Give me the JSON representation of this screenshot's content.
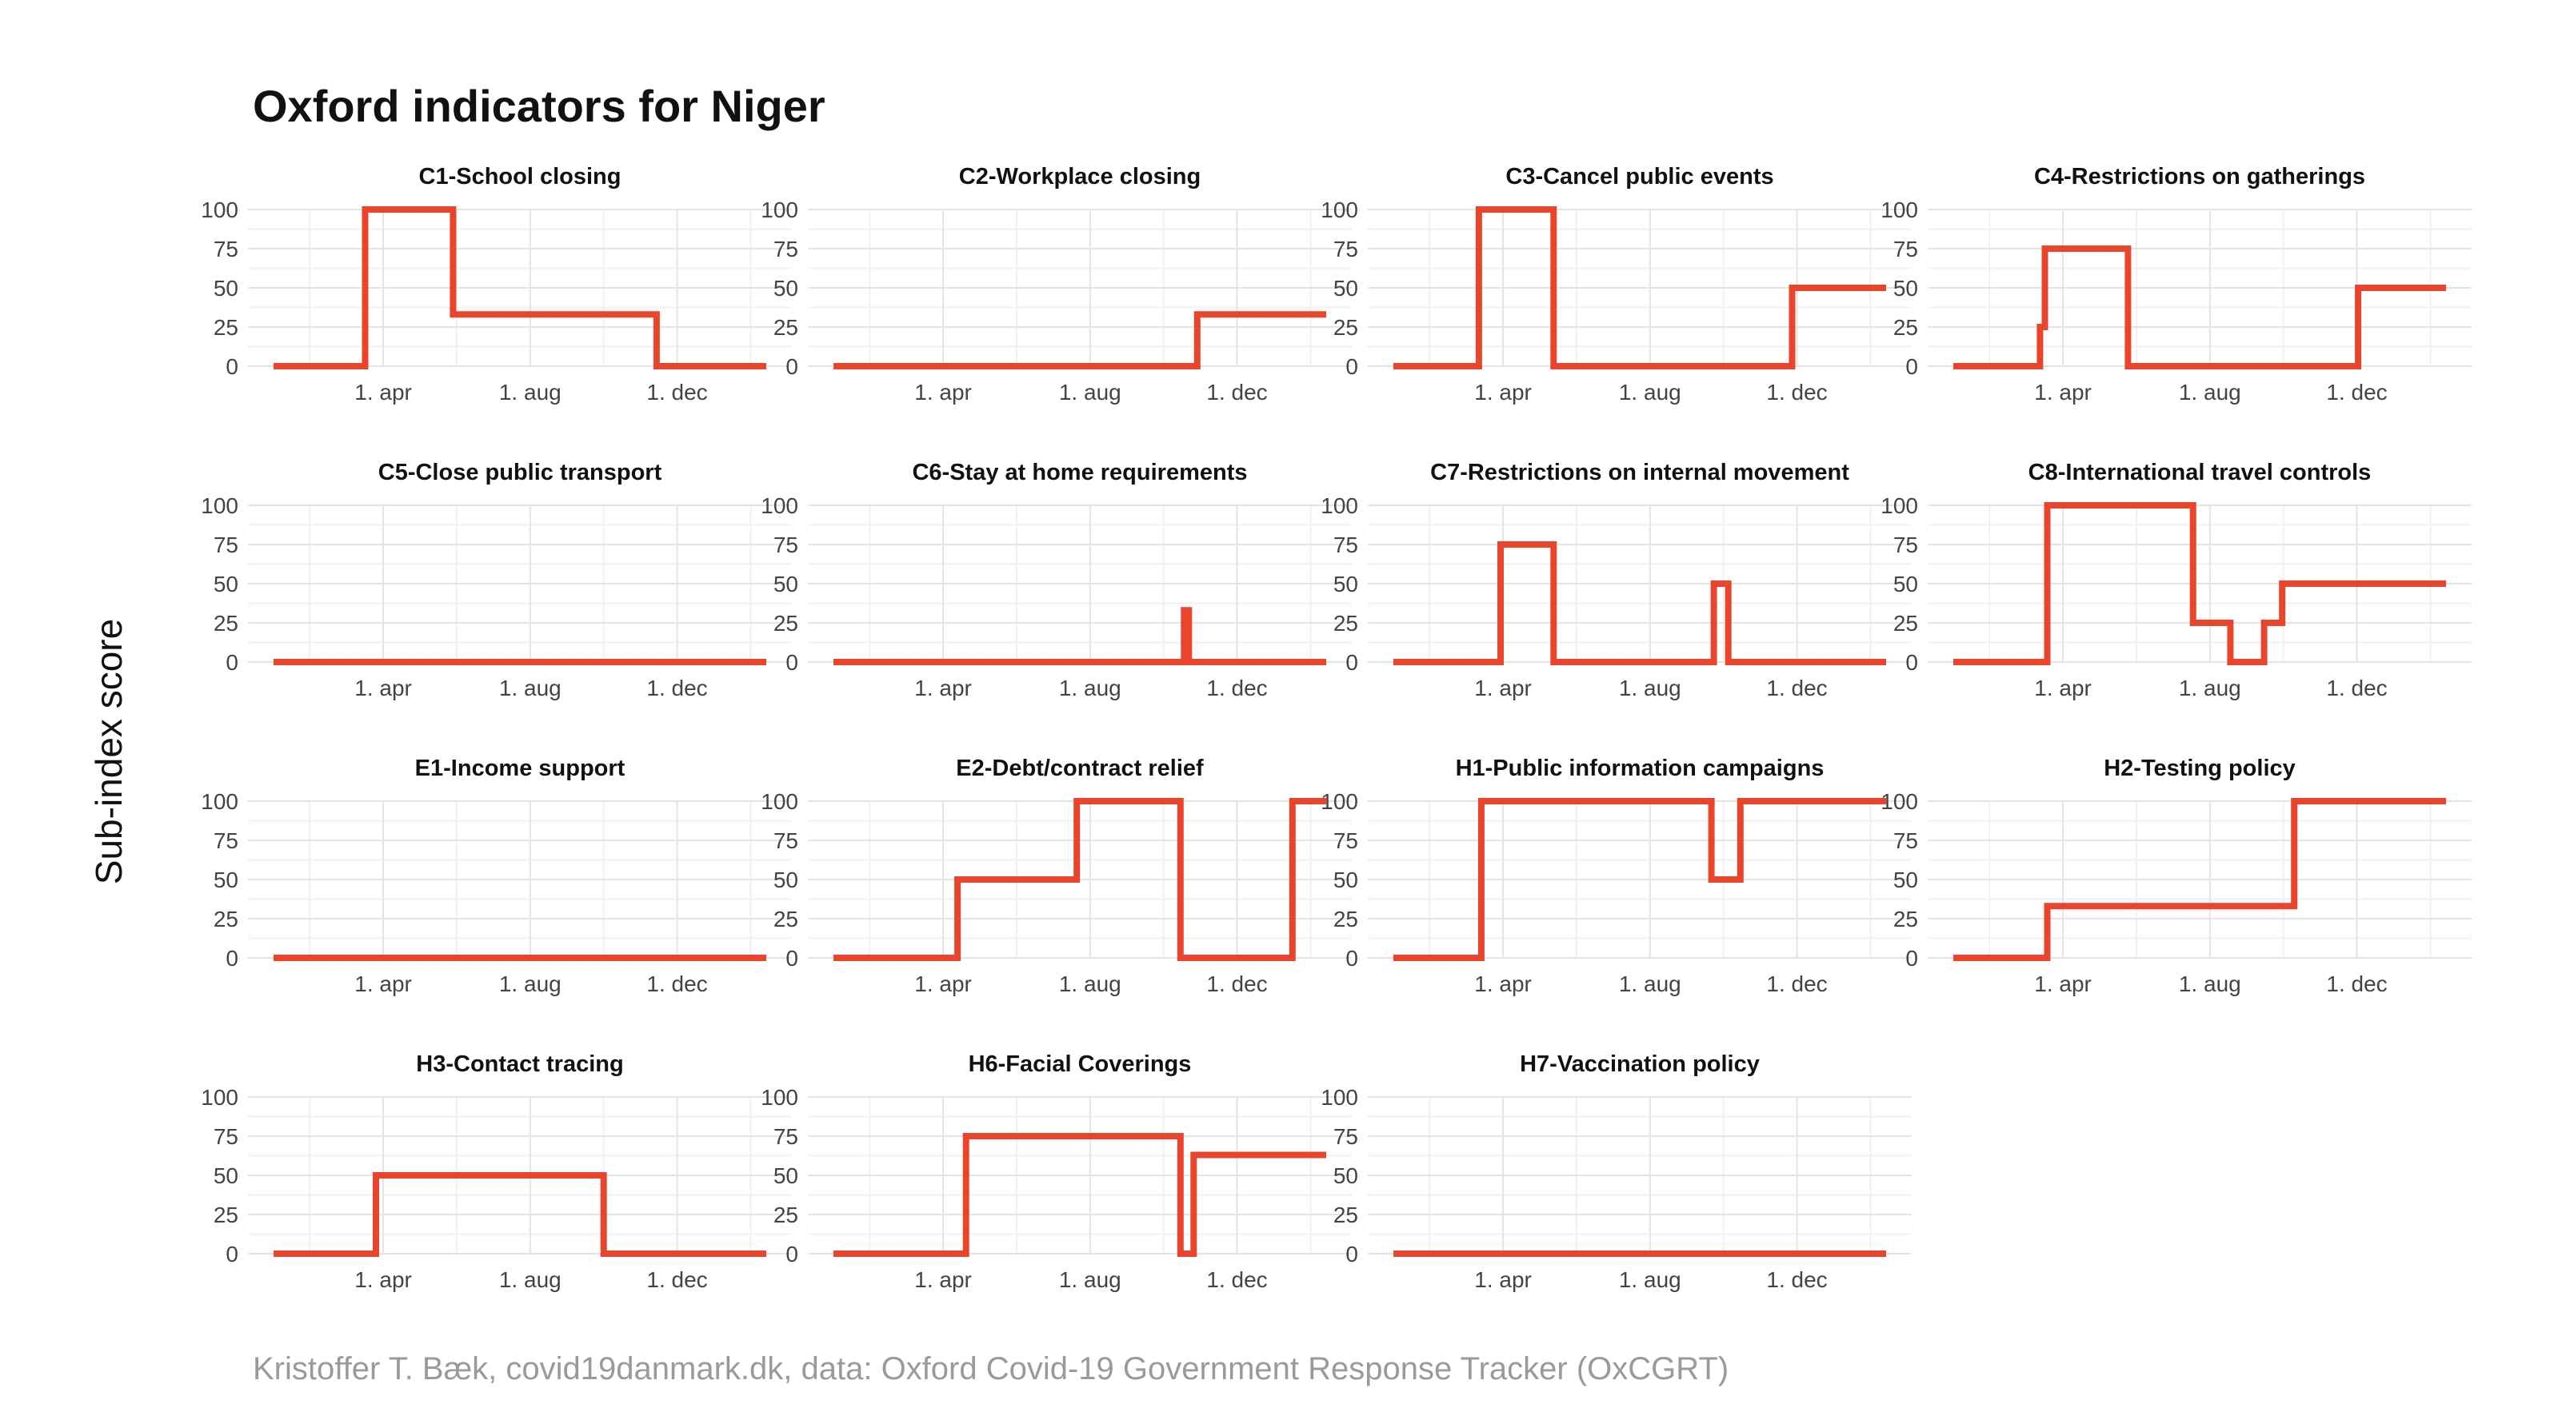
{
  "title": "Oxford indicators for Niger",
  "y_axis_label": "Sub-index score",
  "caption": "Kristoffer T. Bæk, covid19danmark.dk, data: Oxford Covid-19 Government Response Tracker (OxCGRT)",
  "colors": {
    "line": "#e8452c",
    "grid": "#e4e4e4",
    "text": "#111111",
    "caption": "#9a9a9a"
  },
  "chart_data": {
    "type": "line",
    "layout": "facet-grid-4-columns",
    "x_ticks": [
      "1. apr",
      "1. aug",
      "1. dec"
    ],
    "x_tick_dates": [
      "2020-04-01",
      "2020-08-01",
      "2020-12-01"
    ],
    "y_ticks": [
      0,
      25,
      50,
      75,
      100
    ],
    "ylim": [
      0,
      100
    ],
    "xlim": [
      "2020-01-01",
      "2021-02-13"
    ],
    "grid": true,
    "step": true,
    "panels": [
      {
        "title": "C1-School closing",
        "x": [
          "2020-01-01",
          "2020-03-17",
          "2020-05-29",
          "2020-11-14",
          "2021-02-13"
        ],
        "y": [
          0,
          100,
          33,
          0,
          0
        ]
      },
      {
        "title": "C2-Workplace closing",
        "x": [
          "2020-01-01",
          "2020-10-29",
          "2021-02-13"
        ],
        "y": [
          0,
          33,
          33
        ]
      },
      {
        "title": "C3-Cancel public events",
        "x": [
          "2020-01-01",
          "2020-03-12",
          "2020-05-13",
          "2020-11-27",
          "2021-02-13"
        ],
        "y": [
          0,
          100,
          0,
          50,
          50
        ]
      },
      {
        "title": "C4-Restrictions on gatherings",
        "x": [
          "2020-01-01",
          "2020-03-13",
          "2020-03-17",
          "2020-05-25",
          "2020-12-02",
          "2021-02-13"
        ],
        "y": [
          0,
          25,
          75,
          0,
          50,
          50
        ]
      },
      {
        "title": "C5-Close public transport",
        "x": [
          "2020-01-01",
          "2021-02-13"
        ],
        "y": [
          0,
          0
        ]
      },
      {
        "title": "C6-Stay at home requirements",
        "x": [
          "2020-01-01",
          "2020-10-18",
          "2020-10-22",
          "2021-02-13"
        ],
        "y": [
          0,
          33,
          0,
          0
        ]
      },
      {
        "title": "C7-Restrictions on internal movement",
        "x": [
          "2020-01-01",
          "2020-03-30",
          "2020-05-13",
          "2020-09-23",
          "2020-10-05",
          "2021-02-13"
        ],
        "y": [
          0,
          75,
          0,
          50,
          0,
          0
        ]
      },
      {
        "title": "C8-International travel controls",
        "x": [
          "2020-01-01",
          "2020-03-19",
          "2020-07-18",
          "2020-08-18",
          "2020-09-15",
          "2020-09-30",
          "2021-02-13"
        ],
        "y": [
          0,
          100,
          25,
          0,
          25,
          50,
          50
        ]
      },
      {
        "title": "E1-Income support",
        "x": [
          "2020-01-01",
          "2021-02-13"
        ],
        "y": [
          0,
          0
        ]
      },
      {
        "title": "E2-Debt/contract relief",
        "x": [
          "2020-01-01",
          "2020-04-13",
          "2020-07-21",
          "2020-10-15",
          "2021-01-16",
          "2021-02-13"
        ],
        "y": [
          0,
          50,
          100,
          0,
          100,
          100
        ]
      },
      {
        "title": "H1-Public information campaigns",
        "x": [
          "2020-01-01",
          "2020-03-14",
          "2020-09-21",
          "2020-10-15",
          "2021-02-13"
        ],
        "y": [
          0,
          100,
          50,
          100,
          100
        ]
      },
      {
        "title": "H2-Testing policy",
        "x": [
          "2020-01-01",
          "2020-03-19",
          "2020-10-10",
          "2021-02-13"
        ],
        "y": [
          0,
          33,
          100,
          100
        ]
      },
      {
        "title": "H3-Contact tracing",
        "x": [
          "2020-01-01",
          "2020-03-26",
          "2020-10-01",
          "2021-02-13"
        ],
        "y": [
          0,
          50,
          0,
          0
        ]
      },
      {
        "title": "H6-Facial Coverings",
        "x": [
          "2020-01-01",
          "2020-04-20",
          "2020-10-15",
          "2020-10-26",
          "2021-02-13"
        ],
        "y": [
          0,
          75,
          0,
          63,
          63
        ]
      },
      {
        "title": "H7-Vaccination policy",
        "x": [
          "2020-01-01",
          "2021-02-13"
        ],
        "y": [
          0,
          0
        ]
      }
    ]
  }
}
